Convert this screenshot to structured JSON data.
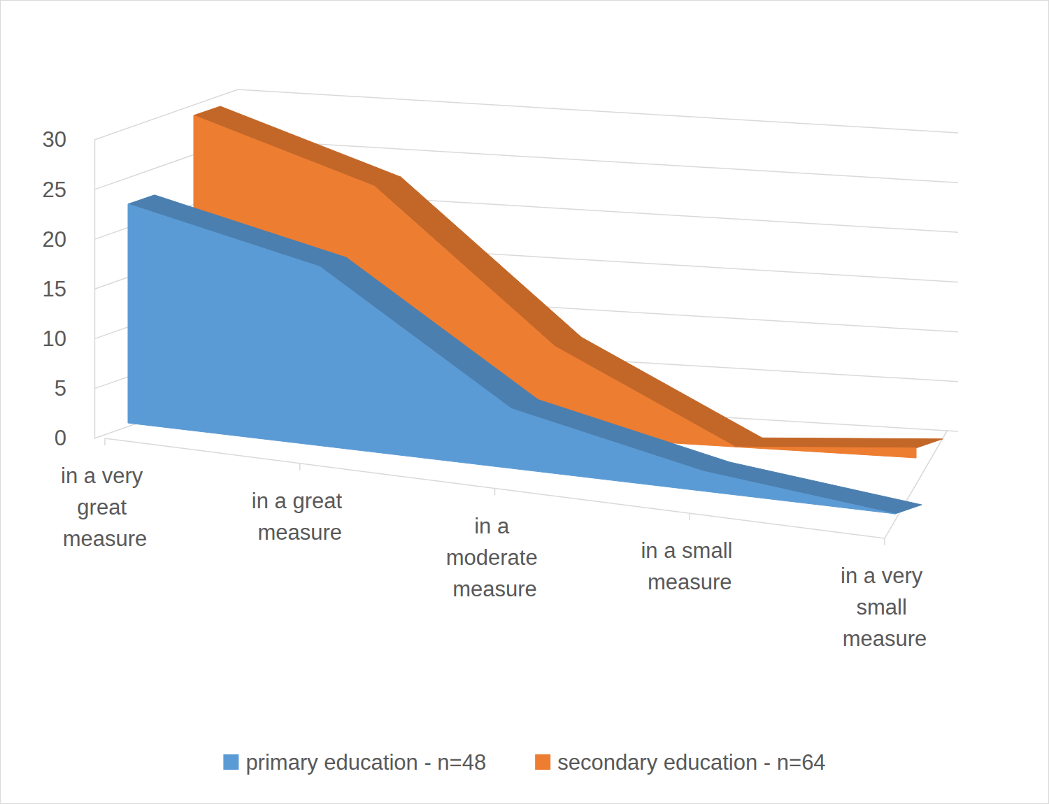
{
  "chart_data": {
    "type": "area",
    "categories": [
      "in a very great measure",
      "in a great measure",
      "in a moderate measure",
      "in a small measure",
      "in a very small measure"
    ],
    "series": [
      {
        "name": "primary education - n=48",
        "color": "#5b9bd5",
        "values": [
          22,
          18,
          6,
          2,
          0
        ]
      },
      {
        "name": "secondary education - n=64",
        "color": "#ed7d31",
        "values": [
          30,
          24,
          9,
          0,
          1
        ]
      }
    ],
    "ylim": [
      0,
      30
    ],
    "yticks": [
      0,
      5,
      10,
      15,
      20,
      25,
      30
    ],
    "grid": true,
    "legend": "bottom"
  }
}
